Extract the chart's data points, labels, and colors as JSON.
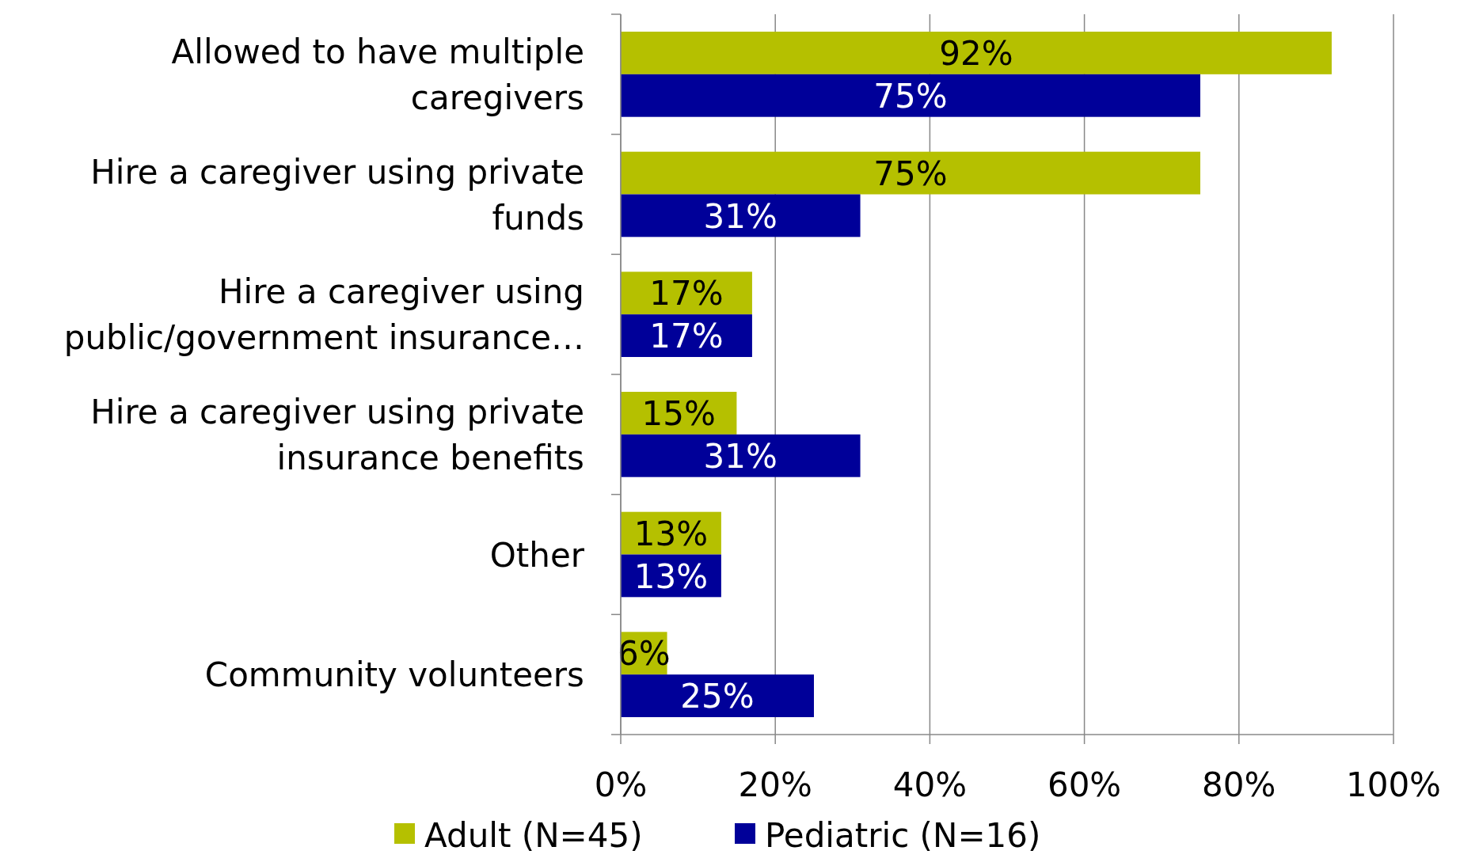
{
  "chart_data": {
    "type": "bar",
    "orientation": "horizontal",
    "categories": [
      "Allowed to have multiple caregivers",
      "Hire a caregiver using private funds",
      "Hire a caregiver using public/government insurance…",
      "Hire a caregiver using private insurance benefits",
      "Other",
      "Community volunteers"
    ],
    "series": [
      {
        "name": "Adult (N=45)",
        "color": "#b5c000",
        "values": [
          92,
          75,
          17,
          15,
          13,
          6
        ],
        "value_labels": [
          "92%",
          "75%",
          "17%",
          "15%",
          "13%",
          "6%"
        ]
      },
      {
        "name": "Pediatric (N=16)",
        "color": "#000099",
        "values": [
          75,
          31,
          17,
          31,
          13,
          25
        ],
        "value_labels": [
          "75%",
          "31%",
          "17%",
          "31%",
          "13%",
          "25%"
        ]
      }
    ],
    "xlim": [
      0,
      100
    ],
    "xticks": [
      {
        "value": 0,
        "label": "0%"
      },
      {
        "value": 20,
        "label": "20%"
      },
      {
        "value": 40,
        "label": "40%"
      },
      {
        "value": 60,
        "label": "60%"
      },
      {
        "value": 80,
        "label": "80%"
      },
      {
        "value": 100,
        "label": "100%"
      }
    ],
    "grid": "x",
    "legend": "bottom"
  }
}
